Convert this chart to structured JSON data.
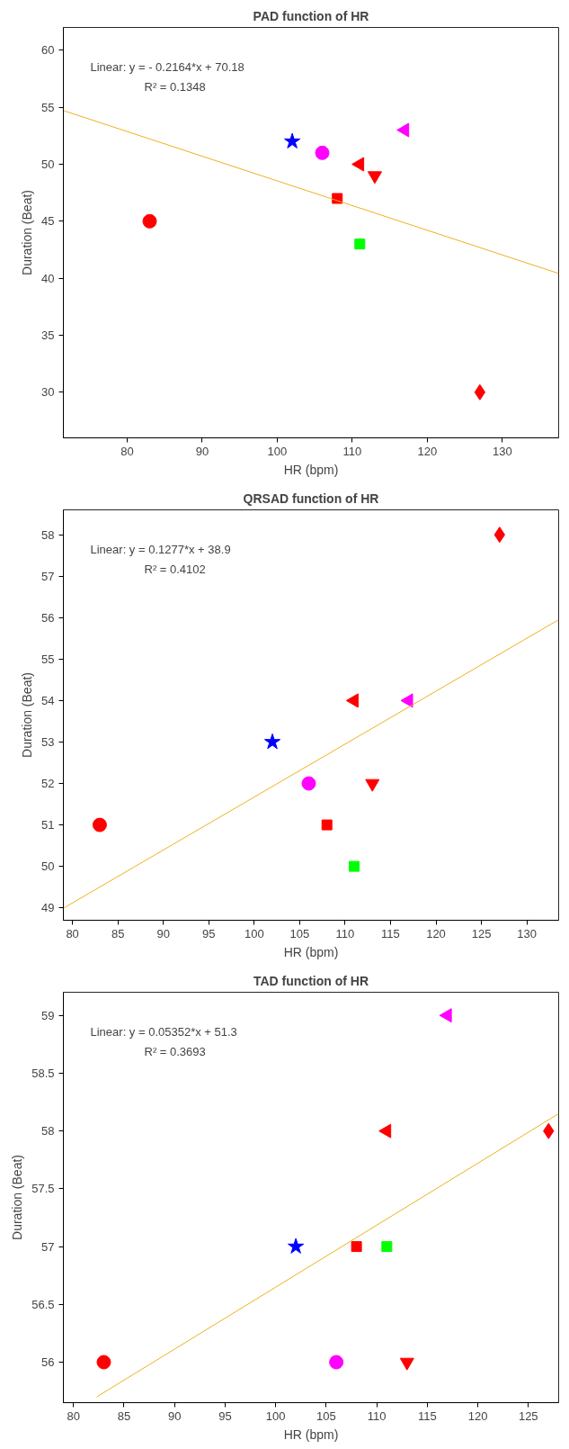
{
  "chart_data": [
    {
      "type": "scatter",
      "title": "PAD function of HR",
      "xlabel": "HR (bpm)",
      "ylabel": "Duration (Beat)",
      "xlim": [
        71.5,
        137.5
      ],
      "xticks": [
        80,
        90,
        100,
        110,
        120,
        130
      ],
      "ylim": [
        26,
        62
      ],
      "yticks": [
        30,
        35,
        40,
        45,
        50,
        55,
        60
      ],
      "grid": false,
      "annotations": [
        "Linear:  y = - 0.2164*x + 70.18",
        "R² = 0.1348"
      ],
      "series": [
        {
          "x": [
            83
          ],
          "values": [
            45
          ],
          "color": "#ff0000",
          "marker": "circle"
        },
        {
          "x": [
            102
          ],
          "values": [
            52
          ],
          "color": "#0000ff",
          "marker": "star"
        },
        {
          "x": [
            106
          ],
          "values": [
            51
          ],
          "color": "#ff00ff",
          "marker": "circle"
        },
        {
          "x": [
            108
          ],
          "values": [
            47
          ],
          "color": "#ff0000",
          "marker": "square"
        },
        {
          "x": [
            111
          ],
          "values": [
            43
          ],
          "color": "#00ff00",
          "marker": "square"
        },
        {
          "x": [
            111
          ],
          "values": [
            50
          ],
          "color": "#ff0000",
          "marker": "triangle-left"
        },
        {
          "x": [
            113
          ],
          "values": [
            49
          ],
          "color": "#ff0000",
          "marker": "triangle-down"
        },
        {
          "x": [
            117
          ],
          "values": [
            53
          ],
          "color": "#ff00ff",
          "marker": "triangle-left"
        },
        {
          "x": [
            127
          ],
          "values": [
            30
          ],
          "color": "#ff0000",
          "marker": "diamond"
        },
        {
          "type": "line",
          "x": [
            71.5,
            137.5
          ],
          "values": [
            54.71,
            40.42
          ],
          "color": "#edb120",
          "marker": "none"
        }
      ]
    },
    {
      "type": "scatter",
      "title": "QRSAD function of HR",
      "xlabel": "HR (bpm)",
      "ylabel": "Duration (Beat)",
      "xlim": [
        79,
        133.5
      ],
      "xticks": [
        80,
        85,
        90,
        95,
        100,
        105,
        110,
        115,
        120,
        125,
        130
      ],
      "ylim": [
        48.7,
        58.6
      ],
      "yticks": [
        49,
        50,
        51,
        52,
        53,
        54,
        55,
        56,
        57,
        58
      ],
      "grid": false,
      "annotations": [
        "Linear:  y = 0.1277*x + 38.9",
        "R² = 0.4102"
      ],
      "series": [
        {
          "x": [
            83
          ],
          "values": [
            51
          ],
          "color": "#ff0000",
          "marker": "circle"
        },
        {
          "x": [
            102
          ],
          "values": [
            53
          ],
          "color": "#0000ff",
          "marker": "star"
        },
        {
          "x": [
            106
          ],
          "values": [
            52
          ],
          "color": "#ff00ff",
          "marker": "circle"
        },
        {
          "x": [
            108
          ],
          "values": [
            51
          ],
          "color": "#ff0000",
          "marker": "square"
        },
        {
          "x": [
            111
          ],
          "values": [
            50
          ],
          "color": "#00ff00",
          "marker": "square"
        },
        {
          "x": [
            111
          ],
          "values": [
            54
          ],
          "color": "#ff0000",
          "marker": "triangle-left"
        },
        {
          "x": [
            113
          ],
          "values": [
            52
          ],
          "color": "#ff0000",
          "marker": "triangle-down"
        },
        {
          "x": [
            117
          ],
          "values": [
            54
          ],
          "color": "#ff00ff",
          "marker": "triangle-left"
        },
        {
          "x": [
            127
          ],
          "values": [
            58
          ],
          "color": "#ff0000",
          "marker": "diamond"
        },
        {
          "type": "line",
          "x": [
            79,
            133.5
          ],
          "values": [
            48.99,
            55.95
          ],
          "color": "#edb120",
          "marker": "none"
        }
      ]
    },
    {
      "type": "scatter",
      "title": "TAD function of HR",
      "xlabel": "HR (bpm)",
      "ylabel": "Duration (Beat)",
      "xlim": [
        79,
        128
      ],
      "xticks": [
        80,
        85,
        90,
        95,
        100,
        105,
        110,
        115,
        120,
        125
      ],
      "ylim": [
        55.65,
        59.2
      ],
      "yticks": [
        56,
        56.5,
        57,
        57.5,
        58,
        58.5,
        59
      ],
      "grid": false,
      "annotations": [
        "Linear:  y = 0.05352*x + 51.3",
        "R² = 0.3693"
      ],
      "series": [
        {
          "x": [
            83
          ],
          "values": [
            56
          ],
          "color": "#ff0000",
          "marker": "circle"
        },
        {
          "x": [
            102
          ],
          "values": [
            57
          ],
          "color": "#0000ff",
          "marker": "star"
        },
        {
          "x": [
            106
          ],
          "values": [
            56
          ],
          "color": "#ff00ff",
          "marker": "circle"
        },
        {
          "x": [
            108
          ],
          "values": [
            57
          ],
          "color": "#ff0000",
          "marker": "square"
        },
        {
          "x": [
            111
          ],
          "values": [
            57
          ],
          "color": "#00ff00",
          "marker": "square"
        },
        {
          "x": [
            111
          ],
          "values": [
            58
          ],
          "color": "#ff0000",
          "marker": "triangle-left"
        },
        {
          "x": [
            113
          ],
          "values": [
            56
          ],
          "color": "#ff0000",
          "marker": "triangle-down"
        },
        {
          "x": [
            117
          ],
          "values": [
            59
          ],
          "color": "#ff00ff",
          "marker": "triangle-left"
        },
        {
          "x": [
            127
          ],
          "values": [
            58
          ],
          "color": "#ff0000",
          "marker": "diamond"
        },
        {
          "type": "line",
          "x": [
            82.3,
            128
          ],
          "values": [
            55.7,
            58.15
          ],
          "color": "#edb120",
          "marker": "none"
        }
      ]
    }
  ]
}
